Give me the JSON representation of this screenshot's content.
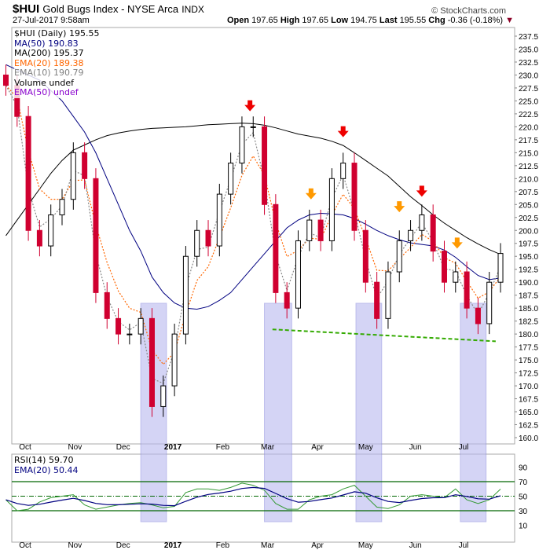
{
  "header": {
    "symbol": "$HUI",
    "name": "Gold Bugs Index - NYSE Arca",
    "exchange": "INDX",
    "datetime": "27-Jul-2017 9:58am",
    "watermark": "© StockCharts.com",
    "open_label": "Open",
    "open": "197.65",
    "high_label": "High",
    "high": "197.65",
    "low_label": "Low",
    "low": "194.75",
    "last_label": "Last",
    "last": "195.55",
    "chg_label": "Chg",
    "chg": "-0.36 (-0.18%)",
    "chg_color": "#8b0026"
  },
  "legend": [
    {
      "text": "$HUI (Daily) 195.55",
      "color": "#000000"
    },
    {
      "text": "MA(50) 190.83",
      "color": "#000080"
    },
    {
      "text": "MA(200) 195.37",
      "color": "#000000"
    },
    {
      "text": "EMA(20) 189.38",
      "color": "#ff6600"
    },
    {
      "text": "EMA(10) 190.79",
      "color": "#808080"
    },
    {
      "text": "Volume undef",
      "color": "#000000"
    },
    {
      "text": "EMA(50) undef",
      "color": "#8800cc"
    }
  ],
  "rsi_legend": [
    {
      "text": "RSI(14) 59.70",
      "color": "#006600"
    },
    {
      "text": "EMA(20) 50.44",
      "color": "#000080"
    }
  ],
  "chart_data": {
    "type": "candlestick",
    "ylim": [
      160,
      237.5
    ],
    "yticks": [
      160,
      162.5,
      165,
      167.5,
      170,
      172.5,
      175,
      177.5,
      180,
      182.5,
      185,
      187.5,
      190,
      192.5,
      195,
      197.5,
      200,
      202.5,
      205,
      207.5,
      210,
      212.5,
      215,
      217.5,
      220,
      222.5,
      225,
      227.5,
      230,
      232.5,
      235,
      237.5
    ],
    "xticks": [
      {
        "label": "Oct",
        "date": "2016-10-01"
      },
      {
        "label": "Nov",
        "date": "2016-11-01"
      },
      {
        "label": "Dec",
        "date": "2016-12-01"
      },
      {
        "label": "2017",
        "date": "2017-01-01"
      },
      {
        "label": "Feb",
        "date": "2017-02-01"
      },
      {
        "label": "Mar",
        "date": "2017-03-01"
      },
      {
        "label": "Apr",
        "date": "2017-04-01"
      },
      {
        "label": "May",
        "date": "2017-05-01"
      },
      {
        "label": "Jun",
        "date": "2017-06-01"
      },
      {
        "label": "Jul",
        "date": "2017-07-01"
      }
    ],
    "dates": [
      "2016-09-19",
      "2016-09-26",
      "2016-10-03",
      "2016-10-10",
      "2016-10-17",
      "2016-10-24",
      "2016-10-31",
      "2016-11-07",
      "2016-11-14",
      "2016-11-21",
      "2016-11-28",
      "2016-12-05",
      "2016-12-12",
      "2016-12-19",
      "2016-12-26",
      "2017-01-02",
      "2017-01-09",
      "2017-01-16",
      "2017-01-23",
      "2017-01-30",
      "2017-02-06",
      "2017-02-13",
      "2017-02-20",
      "2017-02-27",
      "2017-03-06",
      "2017-03-13",
      "2017-03-20",
      "2017-03-27",
      "2017-04-03",
      "2017-04-10",
      "2017-04-17",
      "2017-04-24",
      "2017-05-01",
      "2017-05-08",
      "2017-05-15",
      "2017-05-22",
      "2017-05-29",
      "2017-06-05",
      "2017-06-12",
      "2017-06-19",
      "2017-06-26",
      "2017-07-03",
      "2017-07-10",
      "2017-07-17",
      "2017-07-24"
    ],
    "close": [
      228,
      222,
      200,
      197,
      203,
      206,
      215,
      210,
      188,
      183,
      180,
      180,
      183,
      166,
      170,
      180,
      195,
      200,
      197,
      207,
      213,
      220,
      220,
      205,
      188,
      185,
      198,
      202,
      198,
      210,
      213,
      200,
      190,
      183,
      192,
      198,
      200,
      203,
      196,
      190,
      192,
      185,
      182,
      190,
      195.55
    ],
    "ma200": [
      199,
      202,
      205,
      208,
      211,
      213.5,
      215.5,
      216.5,
      217.5,
      218.3,
      218.8,
      219.2,
      219.5,
      219.7,
      219.8,
      219.9,
      220,
      220.2,
      220.4,
      220.5,
      220.6,
      220.7,
      220.6,
      220.3,
      219.8,
      219.2,
      218.6,
      218.2,
      217.8,
      217.2,
      216.4,
      215,
      213.5,
      212,
      210.5,
      208.5,
      206.5,
      204.8,
      203,
      201.4,
      200,
      198.6,
      197.4,
      196.3,
      195.37
    ],
    "ma50": [
      232,
      231,
      230,
      229,
      227,
      225,
      222,
      219,
      215,
      210,
      205,
      200,
      196,
      191,
      188,
      186,
      185,
      184.8,
      185.3,
      186.5,
      188,
      190.5,
      193,
      195.5,
      198,
      200.5,
      202,
      203,
      203.3,
      203.2,
      203,
      202.3,
      201.2,
      200,
      199,
      198.2,
      197.6,
      197.3,
      197,
      196.2,
      194.8,
      193,
      191.3,
      190.5,
      190.83
    ],
    "rsi": [
      45,
      30,
      32,
      42,
      48,
      50,
      52,
      38,
      32,
      35,
      38,
      40,
      41,
      38,
      34,
      36,
      55,
      60,
      60,
      58,
      62,
      68,
      65,
      58,
      40,
      32,
      32,
      45,
      50,
      52,
      60,
      65,
      50,
      35,
      33,
      38,
      50,
      52,
      50,
      48,
      60,
      45,
      40,
      45,
      59.7
    ],
    "rsi_ylim": [
      0,
      100
    ],
    "rsi_ticks": [
      10,
      30,
      50,
      70,
      90
    ],
    "rsi_bands": [
      30,
      50,
      70
    ],
    "highlight_ranges": [
      [
        "2016-12-12",
        "2016-12-28"
      ],
      [
        "2017-02-27",
        "2017-03-16"
      ],
      [
        "2017-04-25",
        "2017-05-11"
      ],
      [
        "2017-06-29",
        "2017-07-15"
      ]
    ],
    "support_line": {
      "from": {
        "date": "2017-03-04",
        "price": 180.9
      },
      "to": {
        "date": "2017-07-21",
        "price": 178.6
      },
      "color": "#33aa00"
    },
    "arrows": [
      {
        "date": "2017-02-18",
        "price": 223,
        "color": "#ee0000"
      },
      {
        "date": "2017-04-17",
        "price": 218,
        "color": "#ee0000"
      },
      {
        "date": "2017-06-05",
        "price": 206.5,
        "color": "#ee0000"
      },
      {
        "date": "2017-03-28",
        "price": 206,
        "color": "#ff9900"
      },
      {
        "date": "2017-05-22",
        "price": 203.5,
        "color": "#ff9900"
      },
      {
        "date": "2017-06-27",
        "price": 196.5,
        "color": "#ff9900"
      }
    ]
  }
}
